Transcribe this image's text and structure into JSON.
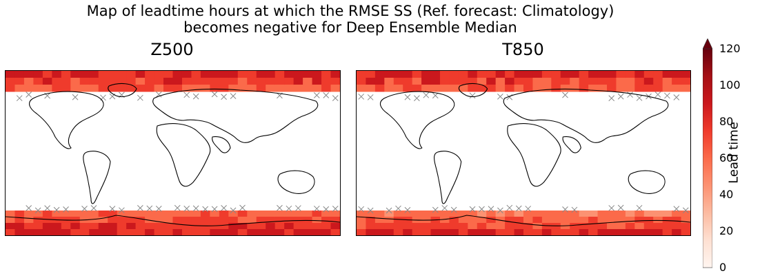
{
  "title_line1": "Map of leadtime hours at which the RMSE SS (Ref. forecast: Climatology)",
  "title_line2": "becomes negative for Deep Ensemble Median",
  "colorbar": {
    "label": "Lead time",
    "ticks": [
      "0",
      "20",
      "40",
      "60",
      "80",
      "100",
      "120"
    ],
    "min": 0,
    "max": 120,
    "extend": "max",
    "colormap": "Reds",
    "colors": [
      "#fff5f0",
      "#fee0d2",
      "#fcbba1",
      "#fc9272",
      "#fb6a4a",
      "#ef3b2c",
      "#cb181d",
      "#a50f15",
      "#67000d"
    ]
  },
  "chart_data": [
    {
      "type": "heatmap",
      "title": "Z500",
      "projection": "global map",
      "description_regions": [
        {
          "region": "north polar band",
          "value": 95
        },
        {
          "region": "south polar band",
          "value": 95
        },
        {
          "region": "mid latitudes and tropics",
          "value": null
        }
      ],
      "hatch_marker": "x",
      "coastlines": true
    },
    {
      "type": "heatmap",
      "title": "T850",
      "projection": "global map",
      "description_regions": [
        {
          "region": "north polar band",
          "value": 95
        },
        {
          "region": "south polar band",
          "value": 90
        },
        {
          "region": "mid latitudes and tropics",
          "value": null
        }
      ],
      "hatch_marker": "x",
      "coastlines": true
    }
  ]
}
